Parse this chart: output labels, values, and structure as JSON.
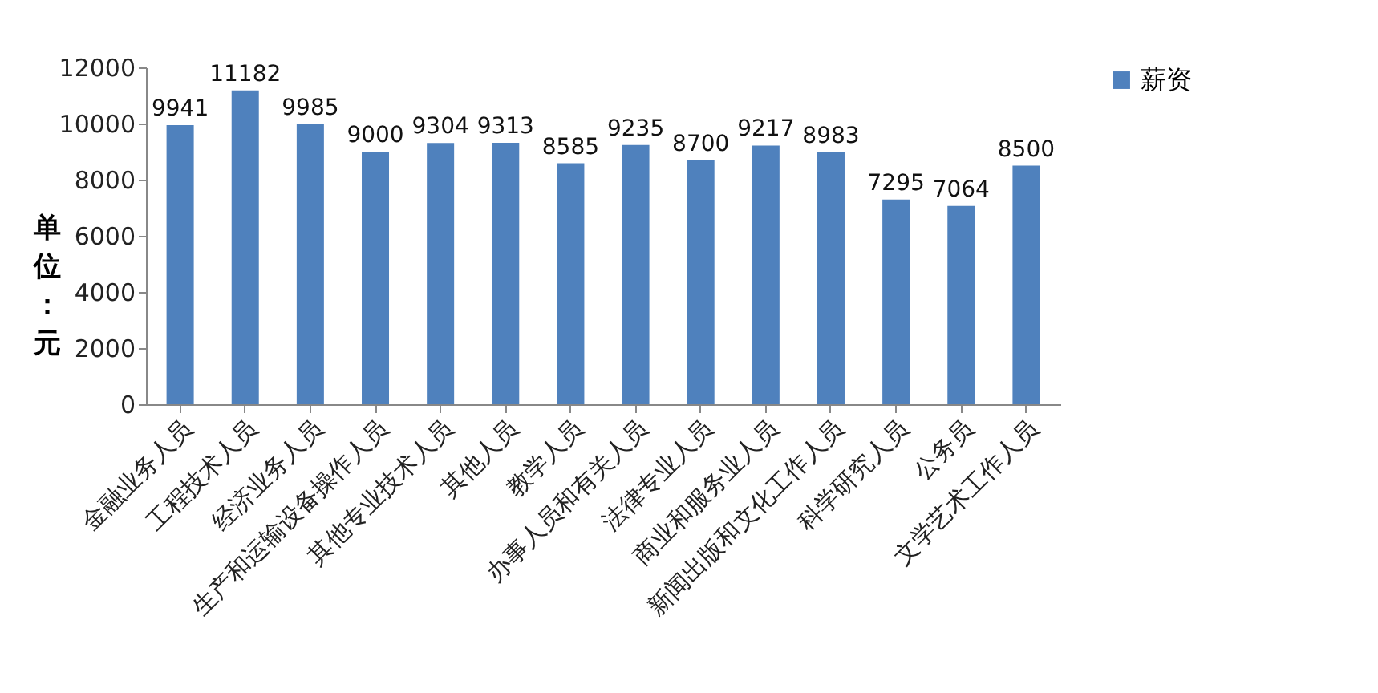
{
  "chart_data": {
    "type": "bar",
    "ylabel": "单位：元",
    "categories": [
      "金融业务人员",
      "工程技术人员",
      "经济业务人员",
      "生产和运输设备操作人员",
      "其他专业技术人员",
      "其他人员",
      "教学人员",
      "办事人员和有关人员",
      "法律专业人员",
      "商业和服务业人员",
      "新闻出版和文化工作人员",
      "科学研究人员",
      "公务员",
      "文学艺术工作人员"
    ],
    "series": [
      {
        "name": "薪资",
        "color": "#4f81bd",
        "values": [
          9941,
          11182,
          9985,
          9000,
          9304,
          9313,
          8585,
          9235,
          8700,
          9217,
          8983,
          7295,
          7064,
          8500
        ]
      }
    ],
    "ylim": [
      0,
      12000
    ],
    "yticks": [
      0,
      2000,
      4000,
      6000,
      8000,
      10000,
      12000
    ],
    "data_labels": true,
    "legend": "right"
  }
}
